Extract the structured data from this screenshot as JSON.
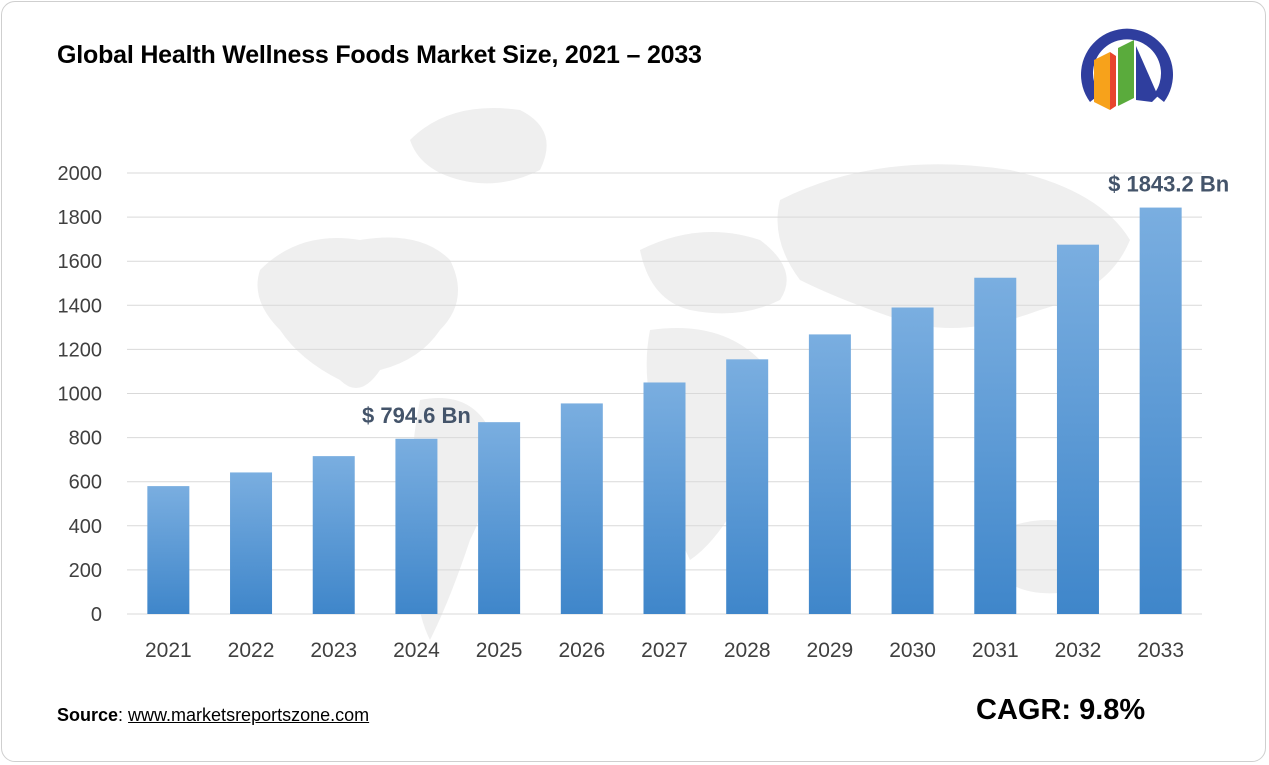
{
  "title": "Global Health Wellness Foods Market Size, 2021 – 2033",
  "source": {
    "label": "Source",
    "separator": ": ",
    "link": "www.marketsreportszone.com"
  },
  "cagr": "CAGR: 9.8%",
  "logo": {
    "icon": "bar-chart-logo-icon",
    "colors": [
      "#2f3e9e",
      "#f7a21b",
      "#5aab3c",
      "#e8452c"
    ]
  },
  "colors": {
    "bar_top": "#7aaee0",
    "bar_bottom": "#3f86ca",
    "grid": "#d9d9d9",
    "axis_text": "#404040",
    "annotation": "#44546a",
    "map": "#eeeeee"
  },
  "chart_data": {
    "type": "bar",
    "categories": [
      "2021",
      "2022",
      "2023",
      "2024",
      "2025",
      "2026",
      "2027",
      "2028",
      "2029",
      "2030",
      "2031",
      "2032",
      "2033"
    ],
    "values": [
      580,
      642,
      716,
      794.6,
      870,
      955,
      1050,
      1155,
      1268,
      1390,
      1525,
      1675,
      1843.2
    ],
    "ylim": [
      0,
      2000
    ],
    "yticks": [
      0,
      200,
      400,
      600,
      800,
      1000,
      1200,
      1400,
      1600,
      1800,
      2000
    ],
    "grid": true,
    "annotations": [
      {
        "category": "2024",
        "text": "$ 794.6 Bn"
      },
      {
        "category": "2033",
        "text": "$ 1843.2 Bn"
      }
    ]
  }
}
